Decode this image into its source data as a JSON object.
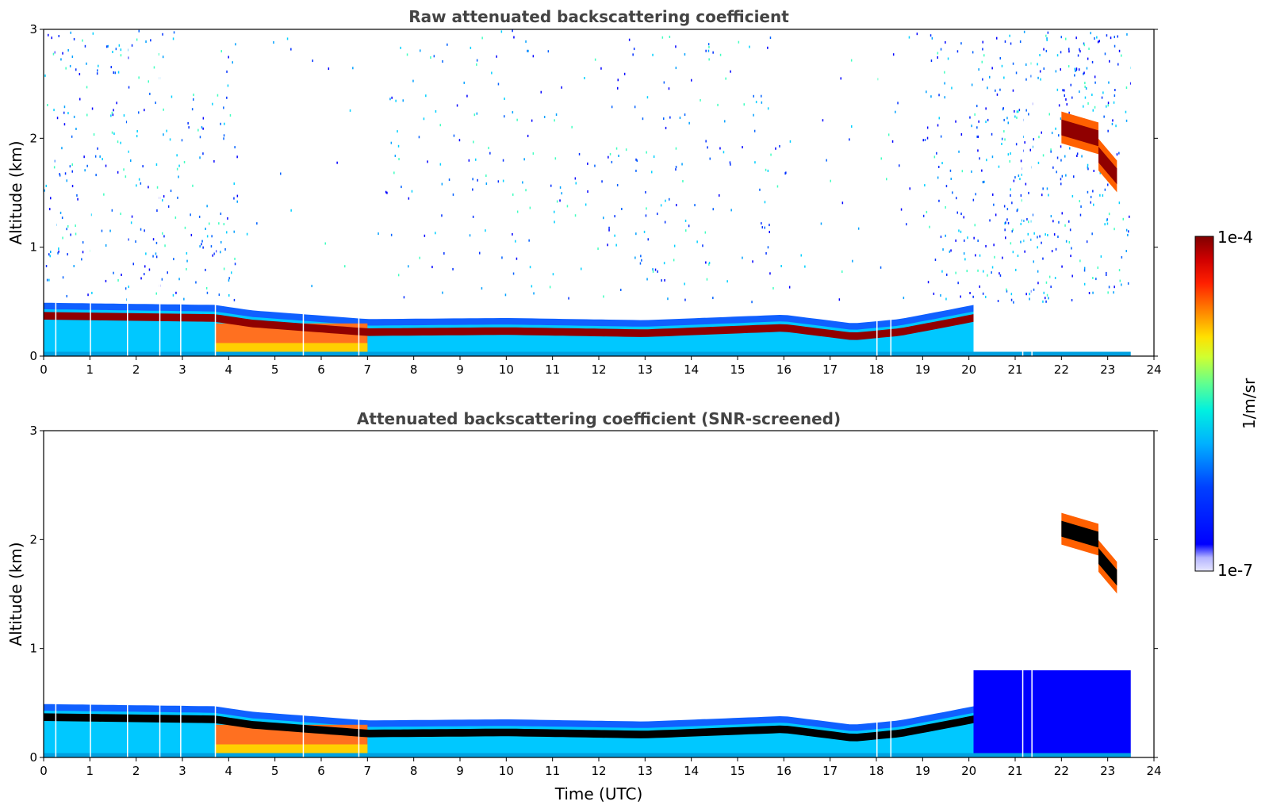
{
  "chart_data": [
    {
      "type": "heatmap",
      "title": "Raw attenuated backscattering coefficient",
      "xlabel": "",
      "ylabel": "Altitude (km)",
      "xlim": [
        0,
        24
      ],
      "ylim": [
        0,
        3
      ],
      "x_ticks": [
        "0",
        "1",
        "2",
        "3",
        "4",
        "5",
        "6",
        "7",
        "8",
        "9",
        "10",
        "11",
        "12",
        "13",
        "14",
        "15",
        "16",
        "17",
        "18",
        "19",
        "20",
        "21",
        "22",
        "23",
        "24"
      ],
      "y_ticks": [
        "0",
        "1",
        "2",
        "3"
      ],
      "data_time_range": [
        0,
        23.5
      ],
      "boundary_layer": {
        "time": [
          0,
          3.7,
          4.5,
          7,
          10,
          13,
          16,
          17.5,
          18.5,
          19.5,
          20.1
        ],
        "altitude_km": [
          0.37,
          0.35,
          0.3,
          0.22,
          0.23,
          0.21,
          0.26,
          0.18,
          0.22,
          0.3,
          0.35
        ]
      },
      "cloud_segments": [
        {
          "time": [
            22.0,
            22.8
          ],
          "altitude_km": [
            2.1,
            2.0
          ]
        },
        {
          "time": [
            22.8,
            23.2
          ],
          "altitude_km": [
            1.85,
            1.65
          ]
        }
      ],
      "screened": false
    },
    {
      "type": "heatmap",
      "title": "Attenuated backscattering coefficient (SNR-screened)",
      "xlabel": "Time (UTC)",
      "ylabel": "Altitude (km)",
      "xlim": [
        0,
        24
      ],
      "ylim": [
        0,
        3
      ],
      "x_ticks": [
        "0",
        "1",
        "2",
        "3",
        "4",
        "5",
        "6",
        "7",
        "8",
        "9",
        "10",
        "11",
        "12",
        "13",
        "14",
        "15",
        "16",
        "17",
        "18",
        "19",
        "20",
        "21",
        "22",
        "23",
        "24"
      ],
      "y_ticks": [
        "0",
        "1",
        "2",
        "3"
      ],
      "data_time_range": [
        0,
        23.5
      ],
      "boundary_layer": {
        "time": [
          0,
          3.7,
          4.5,
          7,
          10,
          13,
          16,
          17.5,
          18.5,
          19.5,
          20.1
        ],
        "altitude_km": [
          0.37,
          0.35,
          0.3,
          0.22,
          0.23,
          0.21,
          0.26,
          0.18,
          0.22,
          0.3,
          0.35
        ]
      },
      "cloud_segments": [
        {
          "time": [
            22.0,
            22.8
          ],
          "altitude_km": [
            2.1,
            2.0
          ]
        },
        {
          "time": [
            22.8,
            23.2
          ],
          "altitude_km": [
            1.85,
            1.65
          ]
        }
      ],
      "screened": true
    }
  ],
  "colorbar": {
    "label": "1/m/sr",
    "max_label": "1e-4",
    "min_label": "1e-7",
    "colors": [
      "#e6e6ff",
      "#c8c8ff",
      "#a0a0ff",
      "#0000ff",
      "#0050ff",
      "#00a0ff",
      "#00e0ff",
      "#40ffc0",
      "#a0ff60",
      "#ffff00",
      "#ffb000",
      "#ff6000",
      "#ff0000",
      "#c00000",
      "#800000"
    ]
  }
}
